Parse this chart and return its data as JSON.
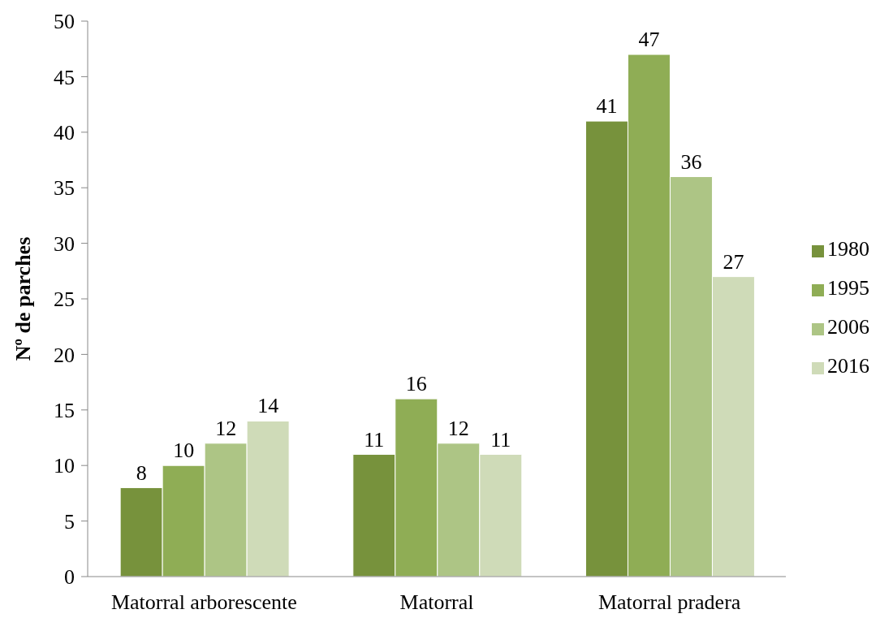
{
  "chart_data": {
    "type": "bar",
    "ylabel": "Nº de parches",
    "categories": [
      "Matorral arborescente",
      "Matorral",
      "Matorral pradera"
    ],
    "series": [
      {
        "name": "1980",
        "color": "#77923c",
        "values": [
          8,
          11,
          41
        ]
      },
      {
        "name": "1995",
        "color": "#8fad55",
        "values": [
          10,
          16,
          47
        ]
      },
      {
        "name": "2006",
        "color": "#adc585",
        "values": [
          12,
          12,
          36
        ]
      },
      {
        "name": "2016",
        "color": "#cfdbb8",
        "values": [
          14,
          11,
          27
        ]
      }
    ],
    "ylim": [
      0,
      50
    ],
    "yticks": [
      0,
      5,
      10,
      15,
      20,
      25,
      30,
      35,
      40,
      45,
      50
    ],
    "data_labels": true,
    "legend": "right",
    "grid": false
  }
}
